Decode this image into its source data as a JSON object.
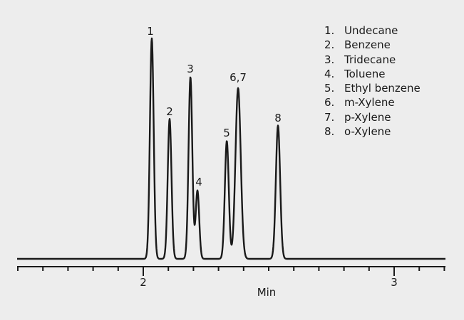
{
  "chart_data": {
    "type": "line",
    "title": "",
    "xlabel": "Min",
    "ylabel": "",
    "xlim": [
      1.5,
      3.21
    ],
    "x_ticks_major": [
      2,
      3
    ],
    "x_tick_labels": [
      "2",
      "3"
    ],
    "x_minor_step": 0.1,
    "grid": false,
    "legend_position": "top-right",
    "peaks": [
      {
        "label": "1",
        "compound": "Undecane",
        "retention_min": 2.034,
        "relative_height": 1.0
      },
      {
        "label": "2",
        "compound": "Benzene",
        "retention_min": 2.105,
        "relative_height": 0.635
      },
      {
        "label": "3",
        "compound": "Tridecane",
        "retention_min": 2.188,
        "relative_height": 0.825
      },
      {
        "label": "4",
        "compound": "Toluene",
        "retention_min": 2.216,
        "relative_height": 0.31
      },
      {
        "label": "5",
        "compound": "Ethyl benzene",
        "retention_min": 2.333,
        "relative_height": 0.535
      },
      {
        "label": "6,7",
        "compound": "m-Xylene / p-Xylene",
        "retention_min": 2.378,
        "relative_height": 0.775
      },
      {
        "label": "8",
        "compound": "o-Xylene",
        "retention_min": 2.537,
        "relative_height": 0.605
      }
    ]
  },
  "legend": {
    "items": [
      {
        "num": "1.",
        "name": "Undecane"
      },
      {
        "num": "2.",
        "name": "Benzene"
      },
      {
        "num": "3.",
        "name": "Tridecane"
      },
      {
        "num": "4.",
        "name": "Toluene"
      },
      {
        "num": "5.",
        "name": "Ethyl benzene"
      },
      {
        "num": "6.",
        "name": "m-Xylene"
      },
      {
        "num": "7.",
        "name": "p-Xylene"
      },
      {
        "num": "8.",
        "name": "o-Xylene"
      }
    ]
  },
  "axis": {
    "x_title": "Min",
    "tick_2": "2",
    "tick_3": "3"
  },
  "peak_labels": [
    "1",
    "2",
    "3",
    "4",
    "5",
    "6,7",
    "8"
  ],
  "colors": {
    "background": "#ededed",
    "trace": "#1a1a1a"
  }
}
